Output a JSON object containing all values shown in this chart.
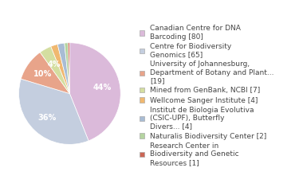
{
  "labels": [
    "Canadian Centre for DNA\nBarcoding [80]",
    "Centre for Biodiversity\nGenomics [65]",
    "University of Johannesburg,\nDepartment of Botany and Plant...\n[19]",
    "Mined from GenBank, NCBI [7]",
    "Wellcome Sanger Institute [4]",
    "Institut de Biologia Evolutiva\n(CSIC-UPF), Butterfly\nDivers... [4]",
    "Naturalis Biodiversity Center [2]",
    "Research Center in\nBiodiversity and Genetic\nResources [1]"
  ],
  "values": [
    80,
    65,
    19,
    7,
    4,
    4,
    2,
    1
  ],
  "colors": [
    "#dbbada",
    "#c4cedf",
    "#e8a48a",
    "#d4dea0",
    "#f0b870",
    "#a8bcd4",
    "#b4d4a0",
    "#cc6655"
  ],
  "startangle": 90,
  "background_color": "#ffffff",
  "text_color": "#444444",
  "fontsize": 6.5,
  "pct_threshold": 3.5
}
